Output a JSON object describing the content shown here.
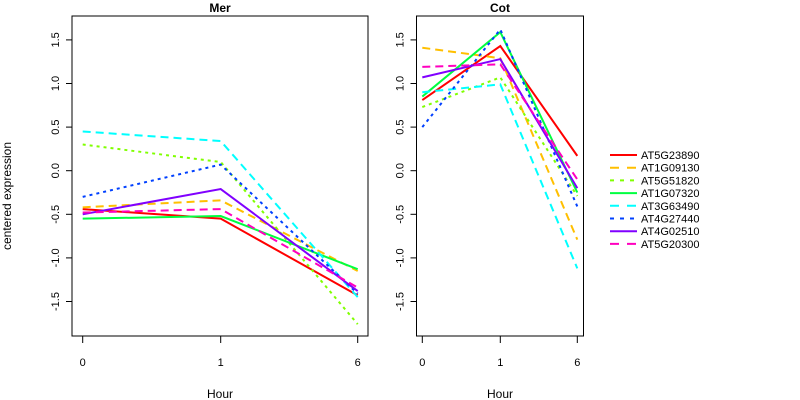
{
  "chart_data": {
    "type": "line",
    "ylabel": "centered expression",
    "ylim": [
      -1.9,
      1.75
    ],
    "yticks": [
      -1.5,
      -1.0,
      -0.5,
      0.0,
      0.5,
      1.0,
      1.5
    ],
    "ytick_labels": [
      "-1.5",
      "-1.0",
      "-0.5",
      "0.0",
      "0.5",
      "1.0",
      "1.5"
    ],
    "categories": [
      "0",
      "1",
      "6"
    ],
    "legend_position": "right",
    "series_styles": [
      {
        "name": "AT5G23890",
        "color": "#FF0000",
        "style": "solid"
      },
      {
        "name": "AT1G09130",
        "color": "#FFBF00",
        "style": "dashed"
      },
      {
        "name": "AT5G51820",
        "color": "#80FF00",
        "style": "dotted"
      },
      {
        "name": "AT1G07320",
        "color": "#00FF40",
        "style": "solid"
      },
      {
        "name": "AT3G63490",
        "color": "#00FFFF",
        "style": "dashed"
      },
      {
        "name": "AT4G27440",
        "color": "#0040FF",
        "style": "dotted"
      },
      {
        "name": "AT4G02510",
        "color": "#8000FF",
        "style": "solid"
      },
      {
        "name": "AT5G20300",
        "color": "#FF00BF",
        "style": "dashed"
      }
    ],
    "panels": [
      {
        "title": "Mer",
        "xlabel": "Hour",
        "series": [
          {
            "name": "AT5G23890",
            "values": [
              -0.44,
              -0.55,
              -1.43
            ]
          },
          {
            "name": "AT1G09130",
            "values": [
              -0.42,
              -0.34,
              -1.15
            ]
          },
          {
            "name": "AT5G51820",
            "values": [
              0.3,
              0.1,
              -1.76
            ]
          },
          {
            "name": "AT1G07320",
            "values": [
              -0.55,
              -0.52,
              -1.13
            ]
          },
          {
            "name": "AT3G63490",
            "values": [
              0.45,
              0.34,
              -1.45
            ]
          },
          {
            "name": "AT4G27440",
            "values": [
              -0.3,
              0.07,
              -1.41
            ]
          },
          {
            "name": "AT4G02510",
            "values": [
              -0.5,
              -0.21,
              -1.38
            ]
          },
          {
            "name": "AT5G20300",
            "values": [
              -0.48,
              -0.44,
              -1.34
            ]
          }
        ]
      },
      {
        "title": "Cot",
        "xlabel": "Hour",
        "series": [
          {
            "name": "AT5G23890",
            "values": [
              0.81,
              1.43,
              0.17
            ]
          },
          {
            "name": "AT1G09130",
            "values": [
              1.41,
              1.29,
              -0.79
            ]
          },
          {
            "name": "AT5G51820",
            "values": [
              0.73,
              1.07,
              -0.29
            ]
          },
          {
            "name": "AT1G07320",
            "values": [
              0.85,
              1.59,
              -0.25
            ]
          },
          {
            "name": "AT3G63490",
            "values": [
              0.9,
              0.99,
              -1.12
            ]
          },
          {
            "name": "AT4G27440",
            "values": [
              0.5,
              1.62,
              -0.41
            ]
          },
          {
            "name": "AT4G02510",
            "values": [
              1.07,
              1.28,
              -0.2
            ]
          },
          {
            "name": "AT5G20300",
            "values": [
              1.19,
              1.22,
              -0.1
            ]
          }
        ]
      }
    ]
  }
}
